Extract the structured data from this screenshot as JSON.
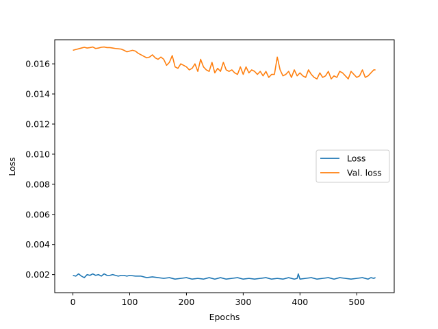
{
  "chart_data": {
    "type": "line",
    "xlabel": "Epochs",
    "ylabel": "Loss",
    "xlim": [
      -32,
      566
    ],
    "ylim": [
      0.0008,
      0.0176
    ],
    "xticks": [
      0,
      100,
      200,
      300,
      400,
      500
    ],
    "xtick_labels": [
      "0",
      "100",
      "200",
      "300",
      "400",
      "500"
    ],
    "yticks": [
      0.002,
      0.004,
      0.006,
      0.008,
      0.01,
      0.012,
      0.014,
      0.016
    ],
    "ytick_labels": [
      "0.002",
      "0.004",
      "0.006",
      "0.008",
      "0.010",
      "0.012",
      "0.014",
      "0.016"
    ],
    "grid": false,
    "legend_position": "center-right",
    "series": [
      {
        "name": "Loss",
        "color": "#1f77b4",
        "x": [
          0,
          5,
          10,
          15,
          20,
          25,
          30,
          35,
          40,
          45,
          50,
          55,
          60,
          65,
          70,
          75,
          80,
          85,
          90,
          95,
          100,
          110,
          120,
          130,
          140,
          150,
          160,
          170,
          180,
          190,
          200,
          210,
          220,
          230,
          240,
          250,
          260,
          270,
          280,
          290,
          300,
          310,
          320,
          330,
          340,
          350,
          360,
          370,
          380,
          390,
          395,
          397,
          400,
          410,
          420,
          430,
          440,
          450,
          460,
          470,
          480,
          490,
          500,
          510,
          520,
          525,
          530,
          533
        ],
        "y": [
          0.00195,
          0.0019,
          0.00205,
          0.0019,
          0.0018,
          0.002,
          0.00195,
          0.00205,
          0.00195,
          0.002,
          0.0019,
          0.00205,
          0.00195,
          0.00195,
          0.002,
          0.00195,
          0.0019,
          0.00195,
          0.00195,
          0.0019,
          0.00195,
          0.0019,
          0.0019,
          0.0018,
          0.00185,
          0.0018,
          0.00175,
          0.0018,
          0.0017,
          0.00175,
          0.0018,
          0.0017,
          0.00175,
          0.0017,
          0.0018,
          0.0017,
          0.0018,
          0.0017,
          0.00175,
          0.0018,
          0.0017,
          0.00175,
          0.0017,
          0.00175,
          0.0018,
          0.0017,
          0.00175,
          0.0017,
          0.0018,
          0.0017,
          0.00175,
          0.00205,
          0.0017,
          0.00175,
          0.0018,
          0.0017,
          0.00175,
          0.0018,
          0.0017,
          0.0018,
          0.00175,
          0.0017,
          0.00175,
          0.0018,
          0.0017,
          0.0018,
          0.00175,
          0.0018
        ]
      },
      {
        "name": "Val. loss",
        "color": "#ff7f0e",
        "x": [
          0,
          5,
          10,
          15,
          20,
          25,
          30,
          35,
          40,
          45,
          50,
          55,
          60,
          65,
          70,
          75,
          80,
          85,
          90,
          95,
          100,
          105,
          110,
          115,
          120,
          125,
          130,
          135,
          140,
          145,
          150,
          155,
          160,
          165,
          170,
          175,
          180,
          185,
          190,
          195,
          200,
          205,
          210,
          215,
          220,
          225,
          230,
          235,
          240,
          245,
          250,
          255,
          260,
          265,
          270,
          275,
          280,
          285,
          290,
          295,
          300,
          305,
          310,
          315,
          320,
          325,
          330,
          335,
          340,
          345,
          350,
          355,
          360,
          365,
          370,
          375,
          380,
          385,
          390,
          395,
          400,
          405,
          410,
          415,
          420,
          425,
          430,
          435,
          440,
          445,
          450,
          455,
          460,
          465,
          470,
          475,
          480,
          485,
          490,
          495,
          500,
          505,
          510,
          515,
          520,
          525,
          530,
          533
        ],
        "y": [
          0.0169,
          0.01695,
          0.017,
          0.01705,
          0.0171,
          0.01705,
          0.01708,
          0.01712,
          0.01702,
          0.01705,
          0.0171,
          0.01712,
          0.01708,
          0.01708,
          0.01705,
          0.01702,
          0.017,
          0.01698,
          0.0169,
          0.0168,
          0.01685,
          0.0169,
          0.01685,
          0.0167,
          0.0166,
          0.0165,
          0.0164,
          0.01645,
          0.0166,
          0.0164,
          0.0163,
          0.01645,
          0.0163,
          0.0159,
          0.0161,
          0.01655,
          0.0158,
          0.0157,
          0.016,
          0.0159,
          0.0158,
          0.0156,
          0.0157,
          0.016,
          0.0155,
          0.0163,
          0.0158,
          0.0156,
          0.0155,
          0.0161,
          0.0154,
          0.0157,
          0.0155,
          0.0161,
          0.0156,
          0.0155,
          0.0156,
          0.0154,
          0.0153,
          0.0158,
          0.0153,
          0.0158,
          0.0154,
          0.0156,
          0.0155,
          0.0153,
          0.0155,
          0.0152,
          0.0155,
          0.0151,
          0.0153,
          0.0153,
          0.01645,
          0.0156,
          0.0152,
          0.0153,
          0.0155,
          0.0151,
          0.0156,
          0.0152,
          0.0154,
          0.0152,
          0.0151,
          0.0156,
          0.0153,
          0.0151,
          0.015,
          0.0154,
          0.0151,
          0.0152,
          0.0155,
          0.015,
          0.0152,
          0.0151,
          0.0155,
          0.0154,
          0.0152,
          0.015,
          0.0155,
          0.0153,
          0.0151,
          0.0152,
          0.0156,
          0.0151,
          0.0152,
          0.0154,
          0.0156,
          0.0156
        ]
      }
    ]
  }
}
